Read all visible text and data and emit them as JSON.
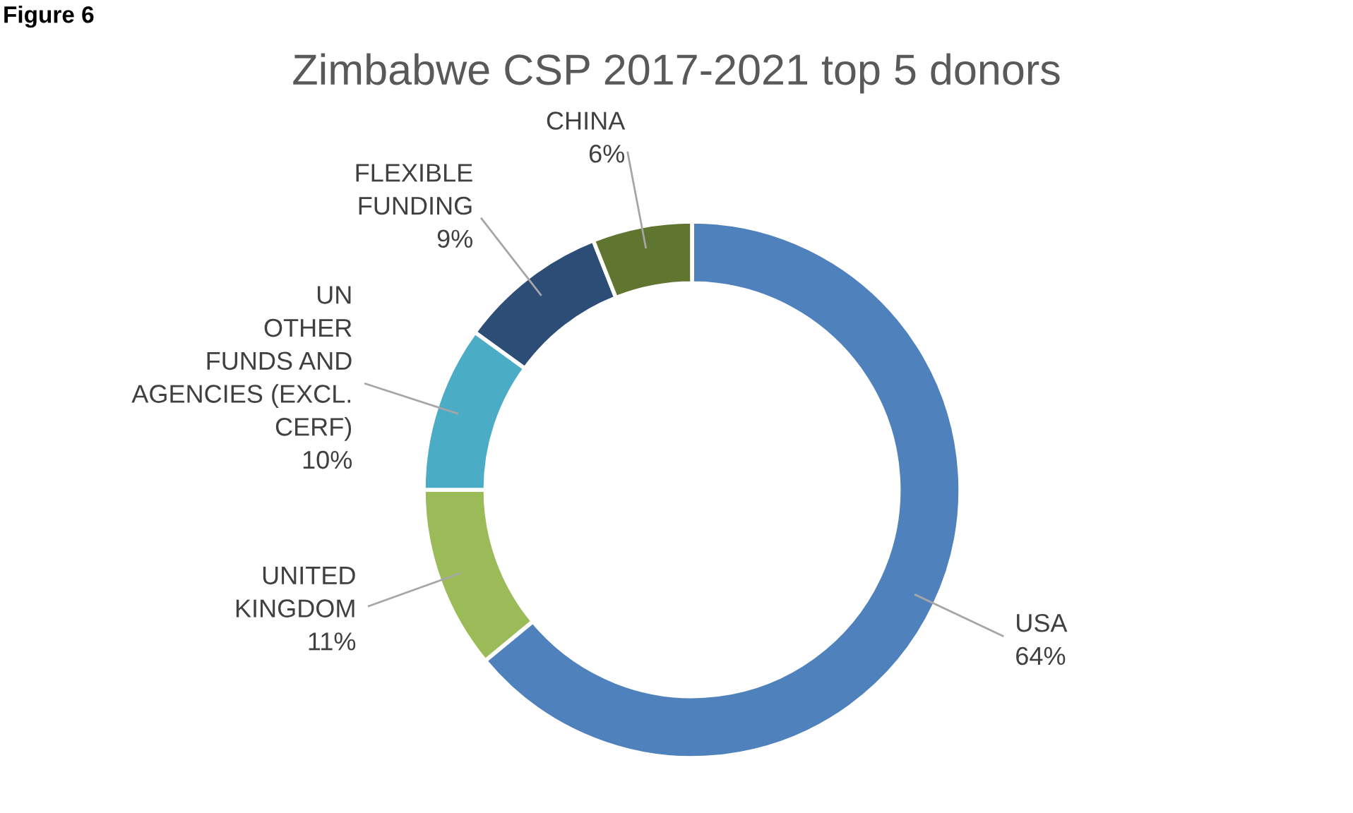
{
  "chart_data": {
    "type": "donut",
    "title": "Zimbabwe CSP 2017-2021 top 5 donors",
    "categories": [
      "USA",
      "UNITED\nKINGDOM",
      "UN\nOTHER\nFUNDS AND\nAGENCIES (EXCL.\nCERF)",
      "FLEXIBLE\nFUNDING",
      "CHINA"
    ],
    "values": [
      64,
      11,
      10,
      9,
      6
    ],
    "value_labels": [
      "64%",
      "11%",
      "10%",
      "9%",
      "6%"
    ],
    "colors": [
      "#4f81bd",
      "#9bbb59",
      "#4bacc6",
      "#2c4d75",
      "#5f7530"
    ],
    "annotations": [
      "Figure 6"
    ]
  }
}
